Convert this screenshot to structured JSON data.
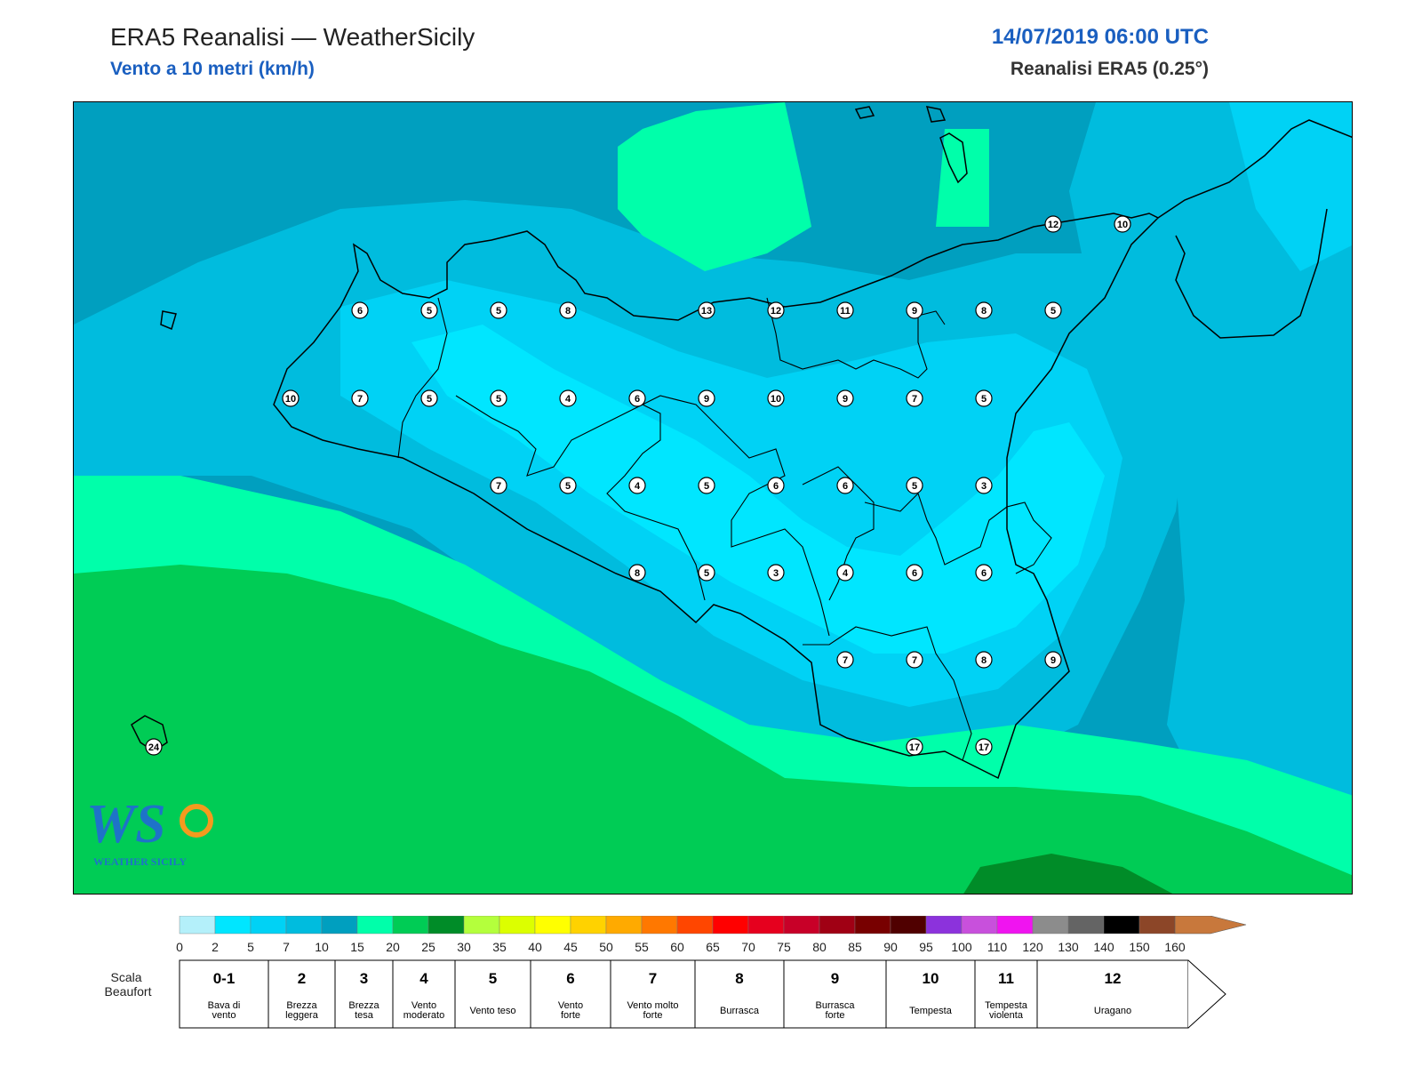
{
  "header": {
    "title": "ERA5 Reanalisi — WeatherSicily",
    "subtitle": "Vento a 10 metri (km/h)",
    "datetime": "14/07/2019 06:00 UTC",
    "dataset": "Reanalisi ERA5 (0.25°)"
  },
  "map": {
    "station_values": [
      6,
      5,
      5,
      8,
      13,
      12,
      11,
      9,
      8,
      5,
      10,
      7,
      5,
      5,
      4,
      6,
      9,
      10,
      9,
      7,
      5,
      7,
      5,
      4,
      5,
      6,
      6,
      5,
      3,
      8,
      5,
      3,
      4,
      6,
      6,
      7,
      7,
      8,
      9,
      17,
      17,
      12,
      10,
      24
    ]
  },
  "logo": {
    "letters": "WS",
    "name": "WEATHER SICILY"
  },
  "legend": {
    "ticks": [
      "0",
      "2",
      "5",
      "7",
      "10",
      "15",
      "20",
      "25",
      "30",
      "35",
      "40",
      "45",
      "50",
      "55",
      "60",
      "65",
      "70",
      "75",
      "80",
      "85",
      "90",
      "95",
      "100",
      "110",
      "120",
      "130",
      "140",
      "150",
      "160"
    ],
    "colors": [
      "#b4f0fa",
      "#00e6ff",
      "#00d2f5",
      "#00bcde",
      "#009fbf",
      "#00ffaa",
      "#00cc55",
      "#008c28",
      "#b4ff3c",
      "#dcff00",
      "#ffff00",
      "#ffd200",
      "#ffaa00",
      "#ff7800",
      "#ff4600",
      "#ff0000",
      "#e6001e",
      "#c80028",
      "#a00014",
      "#780000",
      "#500000",
      "#8c32dc",
      "#c850dc",
      "#f014f0",
      "#8c8c8c",
      "#646464",
      "#000000",
      "#8c4628",
      "#c8783c"
    ],
    "beaufort_title": "Scala Beaufort",
    "beaufort": [
      {
        "num": "0-1",
        "desc": "Bava di vento"
      },
      {
        "num": "2",
        "desc": "Brezza leggera"
      },
      {
        "num": "3",
        "desc": "Brezza tesa"
      },
      {
        "num": "4",
        "desc": "Vento moderato"
      },
      {
        "num": "5",
        "desc": "Vento teso"
      },
      {
        "num": "6",
        "desc": "Vento forte"
      },
      {
        "num": "7",
        "desc": "Vento molto forte"
      },
      {
        "num": "8",
        "desc": "Burrasca"
      },
      {
        "num": "9",
        "desc": "Burrasca forte"
      },
      {
        "num": "10",
        "desc": "Tempesta"
      },
      {
        "num": "11",
        "desc": "Tempesta violenta"
      },
      {
        "num": "12",
        "desc": "Uragano"
      }
    ]
  }
}
